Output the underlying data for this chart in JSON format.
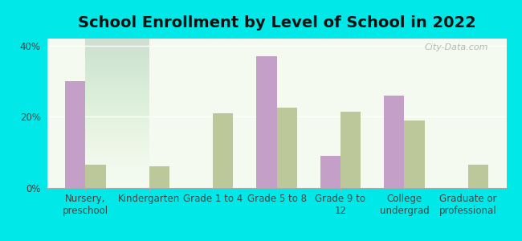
{
  "title": "School Enrollment by Level of School in 2022",
  "categories": [
    "Nursery,\npreschool",
    "Kindergarten",
    "Grade 1 to 4",
    "Grade 5 to 8",
    "Grade 9 to\n12",
    "College\nundergrad",
    "Graduate or\nprofessional"
  ],
  "zip_values": [
    30.0,
    0.0,
    0.0,
    37.0,
    9.0,
    26.0,
    0.0
  ],
  "wa_values": [
    6.5,
    6.0,
    21.0,
    22.5,
    21.5,
    19.0,
    6.5
  ],
  "zip_color": "#c4a0c8",
  "wa_color": "#bcc89a",
  "background_outer": "#00e8e8",
  "background_inner_top": "#e8f5e0",
  "background_inner_bottom": "#f5faf0",
  "ylim": [
    0,
    42
  ],
  "yticks": [
    0,
    20,
    40
  ],
  "ytick_labels": [
    "0%",
    "20%",
    "40%"
  ],
  "watermark": "City-Data.com",
  "bar_width": 0.32,
  "title_fontsize": 14,
  "tick_fontsize": 8.5
}
